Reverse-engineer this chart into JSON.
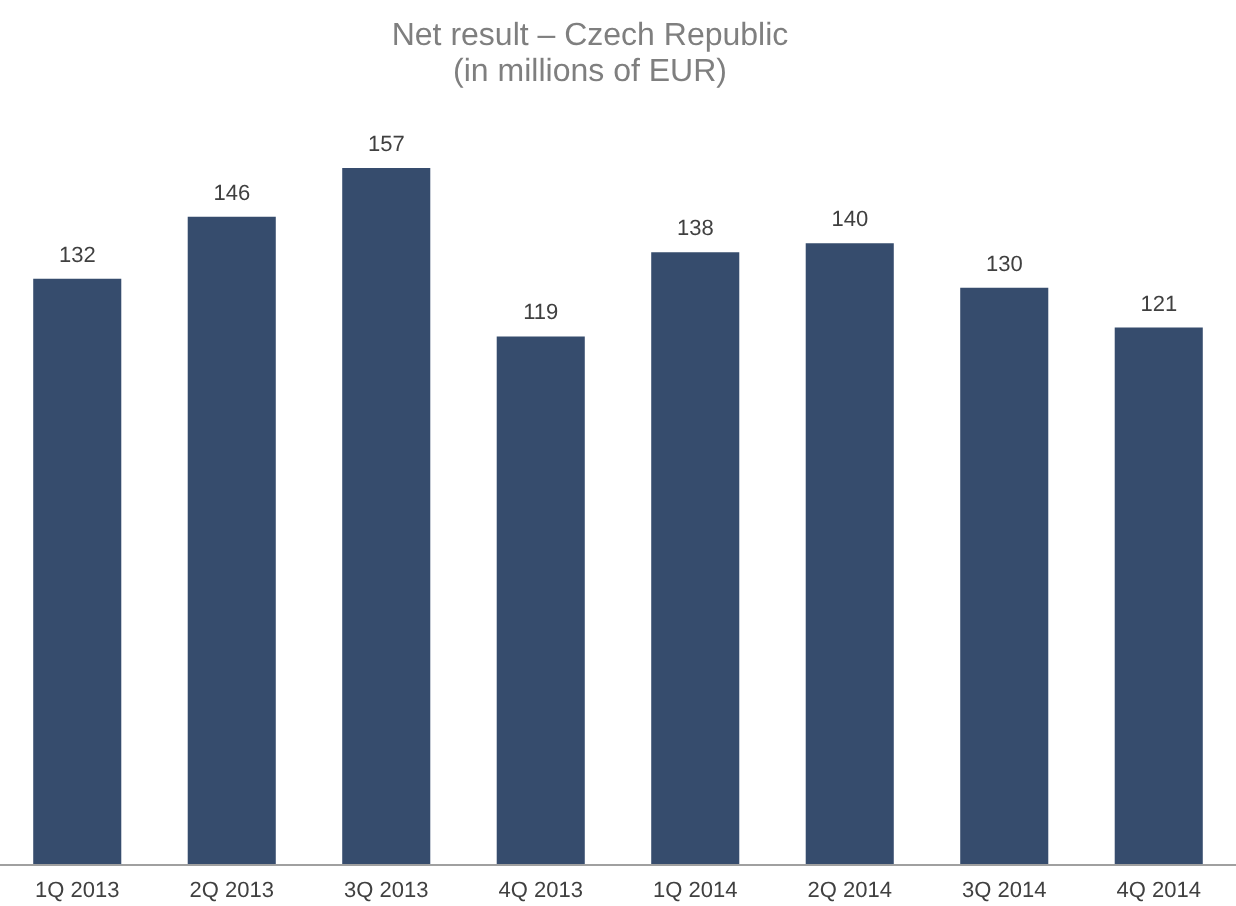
{
  "chart_data": {
    "type": "bar",
    "title": "Net result – Czech Republic\n(in millions of EUR)",
    "categories": [
      "1Q 2013",
      "2Q 2013",
      "3Q 2013",
      "4Q 2013",
      "1Q 2014",
      "2Q 2014",
      "3Q 2014",
      "4Q 2014"
    ],
    "values": [
      132,
      146,
      157,
      119,
      138,
      140,
      130,
      121
    ],
    "color": "#364c6d",
    "data_labels": true
  }
}
